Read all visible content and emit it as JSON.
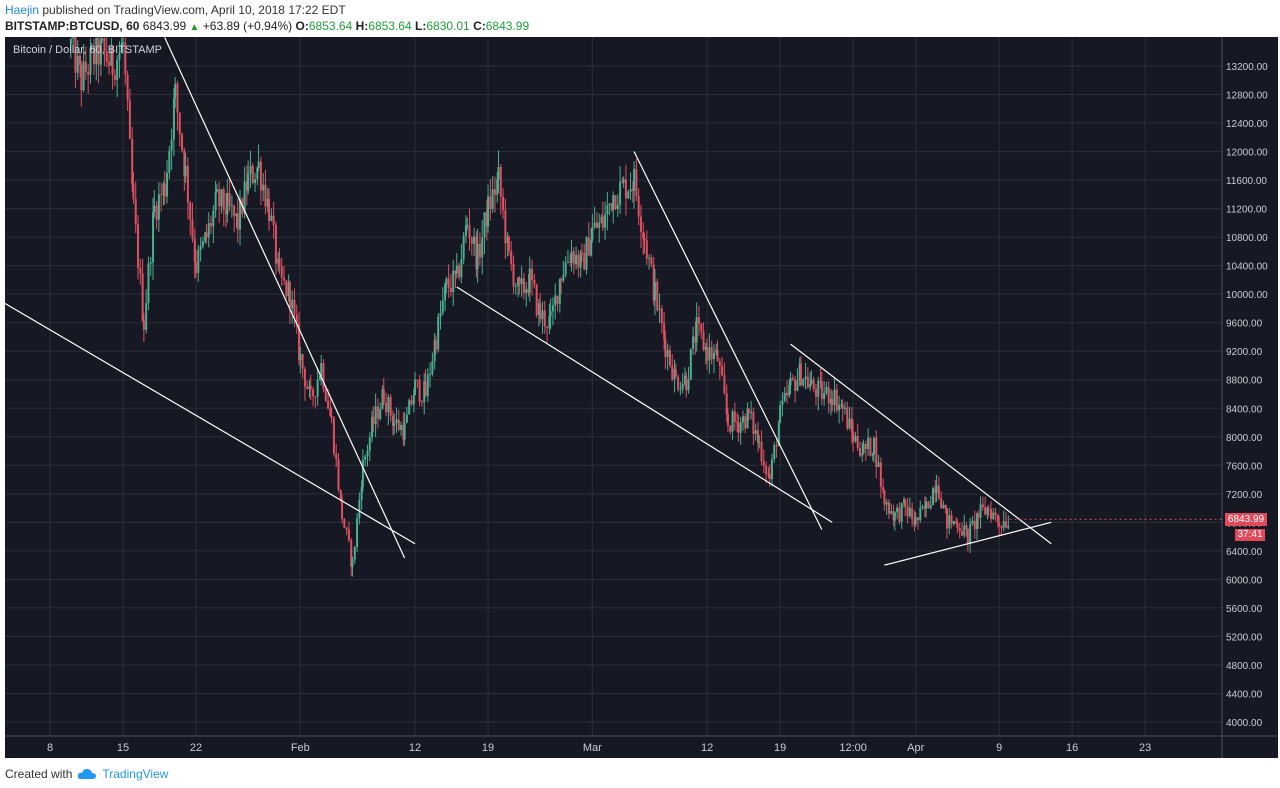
{
  "header": {
    "author": "Haejin",
    "published_text": "published on TradingView.com, April 10, 2018 17:22 EDT",
    "symbol": "BITSTAMP:BTCUSD, 60",
    "last": "6843.99",
    "change": "+63.89 (+0.94%)",
    "o_label": "O:",
    "o_value": "6853.64",
    "h_label": "H:",
    "h_value": "6853.64",
    "l_label": "L:",
    "l_value": "6830.01",
    "c_label": "C:",
    "c_value": "6843.99"
  },
  "chart": {
    "symbol_label": "Bitcoin / Dollar, 60, BITSTAMP",
    "price_badge": "6843.99",
    "timer_badge": "37:41"
  },
  "footer": {
    "created_with": "Created with",
    "brand": "TradingView"
  },
  "colors": {
    "background": "#161923",
    "grid": "#2a2e39",
    "candle_up": "#4caf90",
    "candle_down": "#e05060",
    "trendline": "#ffffff",
    "badge": "#e04a5a"
  },
  "chart_data": {
    "type": "candlestick",
    "title": "Bitcoin / Dollar, 60, BITSTAMP",
    "ylim": [
      3800,
      13600
    ],
    "y_ticks": [
      4000,
      4400,
      4800,
      5200,
      5600,
      6000,
      6400,
      6800,
      7200,
      7600,
      8000,
      8400,
      8800,
      9200,
      9600,
      10000,
      10400,
      10800,
      11200,
      11600,
      12000,
      12400,
      12800,
      13200
    ],
    "y_tick_labels": [
      "4000.00",
      "4400.00",
      "4800.00",
      "5200.00",
      "5600.00",
      "6000.00",
      "6400.00",
      "6800.00",
      "7200.00",
      "7600.00",
      "8000.00",
      "8400.00",
      "8800.00",
      "9200.00",
      "9600.00",
      "10000.00",
      "10400.00",
      "10800.00",
      "11200.00",
      "11600.00",
      "12000.00",
      "12400.00",
      "12800.00",
      "13200.00"
    ],
    "x_tick_labels": [
      "8",
      "15",
      "22",
      "Feb",
      "12",
      "19",
      "Mar",
      "12",
      "19",
      "12:00",
      "Apr",
      "9",
      "16",
      "23"
    ],
    "x_tick_days": [
      -24,
      -17,
      -10,
      -1,
      10,
      17,
      28,
      40,
      47,
      54,
      60,
      68,
      75,
      82
    ],
    "x_tick_dates": [
      "2018-01-08",
      "2018-01-15",
      "2018-01-22",
      "2018-02-01",
      "2018-02-12",
      "2018-02-19",
      "2018-03-01",
      "2018-03-12",
      "2018-03-19",
      "2018-03-26",
      "2018-04-01",
      "2018-04-09",
      "2018-04-16",
      "2018-04-23"
    ],
    "price_path": [
      [
        "2018-01-10",
        13500
      ],
      [
        "2018-01-11",
        13000
      ],
      [
        "2018-01-12",
        13300
      ],
      [
        "2018-01-13",
        13400
      ],
      [
        "2018-01-14",
        13200
      ],
      [
        "2018-01-15",
        13500
      ],
      [
        "2018-01-16",
        11200
      ],
      [
        "2018-01-17",
        9600
      ],
      [
        "2018-01-18",
        11200
      ],
      [
        "2018-01-19",
        11500
      ],
      [
        "2018-01-20",
        12800
      ],
      [
        "2018-01-21",
        11700
      ],
      [
        "2018-01-22",
        10400
      ],
      [
        "2018-01-23",
        10800
      ],
      [
        "2018-01-24",
        11300
      ],
      [
        "2018-01-25",
        11200
      ],
      [
        "2018-01-26",
        11000
      ],
      [
        "2018-01-27",
        11600
      ],
      [
        "2018-01-28",
        11800
      ],
      [
        "2018-01-29",
        11200
      ],
      [
        "2018-01-30",
        10200
      ],
      [
        "2018-01-31",
        10000
      ],
      [
        "2018-02-01",
        9100
      ],
      [
        "2018-02-02",
        8500
      ],
      [
        "2018-02-03",
        9000
      ],
      [
        "2018-02-04",
        8200
      ],
      [
        "2018-02-05",
        6900
      ],
      [
        "2018-02-06",
        6200
      ],
      [
        "2018-02-07",
        7600
      ],
      [
        "2018-02-08",
        8200
      ],
      [
        "2018-02-09",
        8600
      ],
      [
        "2018-02-10",
        8200
      ],
      [
        "2018-02-11",
        8100
      ],
      [
        "2018-02-12",
        8700
      ],
      [
        "2018-02-13",
        8600
      ],
      [
        "2018-02-14",
        9400
      ],
      [
        "2018-02-15",
        10100
      ],
      [
        "2018-02-16",
        10200
      ],
      [
        "2018-02-17",
        11000
      ],
      [
        "2018-02-18",
        10500
      ],
      [
        "2018-02-19",
        11200
      ],
      [
        "2018-02-20",
        11600
      ],
      [
        "2018-02-21",
        10500
      ],
      [
        "2018-02-22",
        10000
      ],
      [
        "2018-02-23",
        10200
      ],
      [
        "2018-02-24",
        9700
      ],
      [
        "2018-02-25",
        9600
      ],
      [
        "2018-02-26",
        10300
      ],
      [
        "2018-02-27",
        10600
      ],
      [
        "2018-02-28",
        10400
      ],
      [
        "2018-03-01",
        10900
      ],
      [
        "2018-03-02",
        11000
      ],
      [
        "2018-03-03",
        11400
      ],
      [
        "2018-03-04",
        11500
      ],
      [
        "2018-03-05",
        11600
      ],
      [
        "2018-03-06",
        10800
      ],
      [
        "2018-03-07",
        10000
      ],
      [
        "2018-03-08",
        9300
      ],
      [
        "2018-03-09",
        8800
      ],
      [
        "2018-03-10",
        8800
      ],
      [
        "2018-03-11",
        9500
      ],
      [
        "2018-03-12",
        9200
      ],
      [
        "2018-03-13",
        9100
      ],
      [
        "2018-03-14",
        8200
      ],
      [
        "2018-03-15",
        8200
      ],
      [
        "2018-03-16",
        8300
      ],
      [
        "2018-03-17",
        7900
      ],
      [
        "2018-03-18",
        7400
      ],
      [
        "2018-03-19",
        8300
      ],
      [
        "2018-03-20",
        8700
      ],
      [
        "2018-03-21",
        8900
      ],
      [
        "2018-03-22",
        8700
      ],
      [
        "2018-03-23",
        8600
      ],
      [
        "2018-03-24",
        8600
      ],
      [
        "2018-03-25",
        8400
      ],
      [
        "2018-03-26",
        8000
      ],
      [
        "2018-03-27",
        7800
      ],
      [
        "2018-03-28",
        7900
      ],
      [
        "2018-03-29",
        7100
      ],
      [
        "2018-03-30",
        6900
      ],
      [
        "2018-03-31",
        7000
      ],
      [
        "2018-04-01",
        6800
      ],
      [
        "2018-04-02",
        7000
      ],
      [
        "2018-04-03",
        7400
      ],
      [
        "2018-04-04",
        6800
      ],
      [
        "2018-04-05",
        6800
      ],
      [
        "2018-04-06",
        6600
      ],
      [
        "2018-04-07",
        6900
      ],
      [
        "2018-04-08",
        7000
      ],
      [
        "2018-04-09",
        6800
      ],
      [
        "2018-04-10",
        6844
      ]
    ],
    "trend_lines": [
      {
        "name": "Jan lower line",
        "from": [
          "2018-01-01",
          10100
        ],
        "to": [
          "2018-02-12",
          6500
        ]
      },
      {
        "name": "Jan upper line",
        "from": [
          "2018-01-19",
          13600
        ],
        "to": [
          "2018-02-11",
          6300
        ]
      },
      {
        "name": "Feb lower line",
        "from": [
          "2018-02-16",
          10100
        ],
        "to": [
          "2018-03-24",
          6800
        ]
      },
      {
        "name": "Mar upper line",
        "from": [
          "2018-03-05",
          12000
        ],
        "to": [
          "2018-03-23",
          6700
        ]
      },
      {
        "name": "Mar wedge upper line",
        "from": [
          "2018-03-20",
          9300
        ],
        "to": [
          "2018-04-14",
          6500
        ]
      },
      {
        "name": "Apr support line",
        "from": [
          "2018-03-29",
          6200
        ],
        "to": [
          "2018-04-14",
          6800
        ]
      }
    ],
    "last_price": 6843.99
  }
}
